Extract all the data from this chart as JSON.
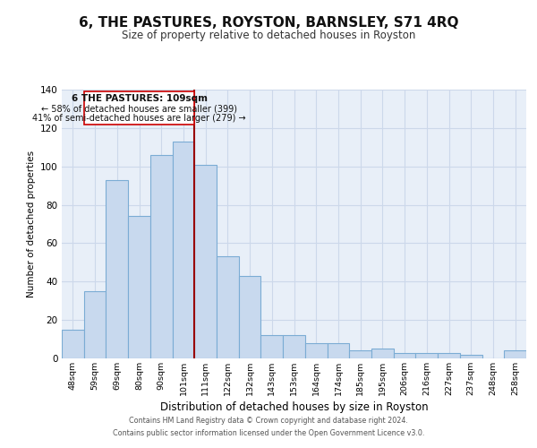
{
  "title": "6, THE PASTURES, ROYSTON, BARNSLEY, S71 4RQ",
  "subtitle": "Size of property relative to detached houses in Royston",
  "xlabel": "Distribution of detached houses by size in Royston",
  "ylabel": "Number of detached properties",
  "bar_labels": [
    "48sqm",
    "59sqm",
    "69sqm",
    "80sqm",
    "90sqm",
    "101sqm",
    "111sqm",
    "122sqm",
    "132sqm",
    "143sqm",
    "153sqm",
    "164sqm",
    "174sqm",
    "185sqm",
    "195sqm",
    "206sqm",
    "216sqm",
    "227sqm",
    "237sqm",
    "248sqm",
    "258sqm"
  ],
  "bar_values": [
    15,
    35,
    93,
    74,
    106,
    113,
    101,
    53,
    43,
    12,
    12,
    8,
    8,
    4,
    5,
    3,
    3,
    3,
    2,
    0,
    4
  ],
  "bar_color": "#c8d9ee",
  "bar_edge_color": "#7bacd4",
  "vline_x": 6.0,
  "annotation_title": "6 THE PASTURES: 109sqm",
  "annotation_line1": "← 58% of detached houses are smaller (399)",
  "annotation_line2": "41% of semi-detached houses are larger (279) →",
  "annotation_box_color": "#ffffff",
  "annotation_box_edge_color": "#cc0000",
  "vline_color": "#990000",
  "ylim": [
    0,
    140
  ],
  "yticks": [
    0,
    20,
    40,
    60,
    80,
    100,
    120,
    140
  ],
  "grid_color": "#ccd8ea",
  "background_color": "#e8eff8",
  "footer1": "Contains HM Land Registry data © Crown copyright and database right 2024.",
  "footer2": "Contains public sector information licensed under the Open Government Licence v3.0."
}
